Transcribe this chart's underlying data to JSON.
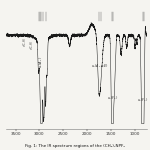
{
  "title": "Fig. 1: The IR spectrum regions of the (CH₃)₄NPF₆",
  "bg_color": "#f5f4f0",
  "line_color": "#1a1a1a",
  "x_ticks": [
    3500,
    3000,
    2500,
    2000,
    1500,
    1000
  ],
  "x_tick_labels": [
    "3500",
    "3000",
    "2500",
    "2000",
    "1500",
    "1000"
  ],
  "xlim": [
    3700,
    750
  ],
  "ylim": [
    -0.05,
    1.05
  ],
  "baseline": 0.82,
  "figsize": [
    1.5,
    1.5
  ],
  "dpi": 100
}
